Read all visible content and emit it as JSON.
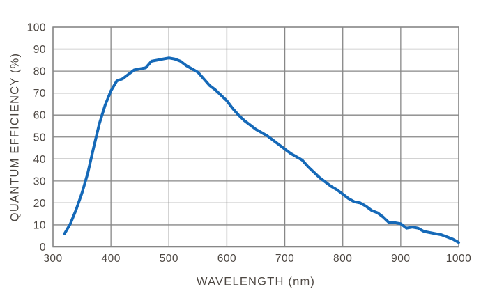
{
  "colors": {
    "background": "#ffffff",
    "line": "#1569b8",
    "grid": "#878787",
    "text": "#4d4742"
  },
  "chart_data": {
    "type": "line",
    "title": "",
    "xlabel": "WAVELENGTH (nm)",
    "ylabel": "QUANTUM EFFICIENCY (%)",
    "xlim": [
      300,
      1000
    ],
    "ylim": [
      0,
      100
    ],
    "x_ticks": [
      300,
      400,
      500,
      600,
      700,
      800,
      900,
      1000
    ],
    "y_ticks": [
      0,
      10,
      20,
      30,
      40,
      50,
      60,
      70,
      80,
      90,
      100
    ],
    "grid": true,
    "legend": false,
    "series": [
      {
        "name": "quantum-efficiency",
        "color": "#1569b8",
        "x": [
          320,
          330,
          340,
          350,
          360,
          370,
          380,
          390,
          400,
          410,
          420,
          430,
          440,
          450,
          460,
          470,
          480,
          490,
          500,
          510,
          520,
          530,
          540,
          550,
          560,
          570,
          580,
          590,
          600,
          610,
          620,
          630,
          640,
          650,
          660,
          670,
          680,
          690,
          700,
          710,
          720,
          730,
          740,
          750,
          760,
          770,
          780,
          790,
          800,
          810,
          820,
          830,
          840,
          850,
          860,
          870,
          880,
          890,
          900,
          910,
          920,
          930,
          940,
          950,
          960,
          970,
          980,
          990,
          1000
        ],
        "y": [
          6,
          10.5,
          17,
          24.5,
          33.5,
          45,
          56,
          64.5,
          71,
          75.5,
          76.5,
          78.5,
          80.5,
          81,
          81.5,
          84.5,
          85,
          85.5,
          86,
          85.5,
          84.5,
          82.5,
          81,
          79.5,
          76.5,
          73.5,
          71.5,
          69,
          66.5,
          63,
          60,
          57.5,
          55.5,
          53.5,
          52,
          50.5,
          48.5,
          46.5,
          44.5,
          42.5,
          41,
          39.5,
          36.5,
          34,
          31.5,
          29.5,
          27.5,
          26,
          24,
          22,
          20.5,
          20,
          18.5,
          16.5,
          15.5,
          13.5,
          11,
          11,
          10.5,
          8.5,
          9,
          8.5,
          7,
          6.5,
          6,
          5.5,
          4.5,
          3.5,
          2
        ]
      }
    ]
  }
}
